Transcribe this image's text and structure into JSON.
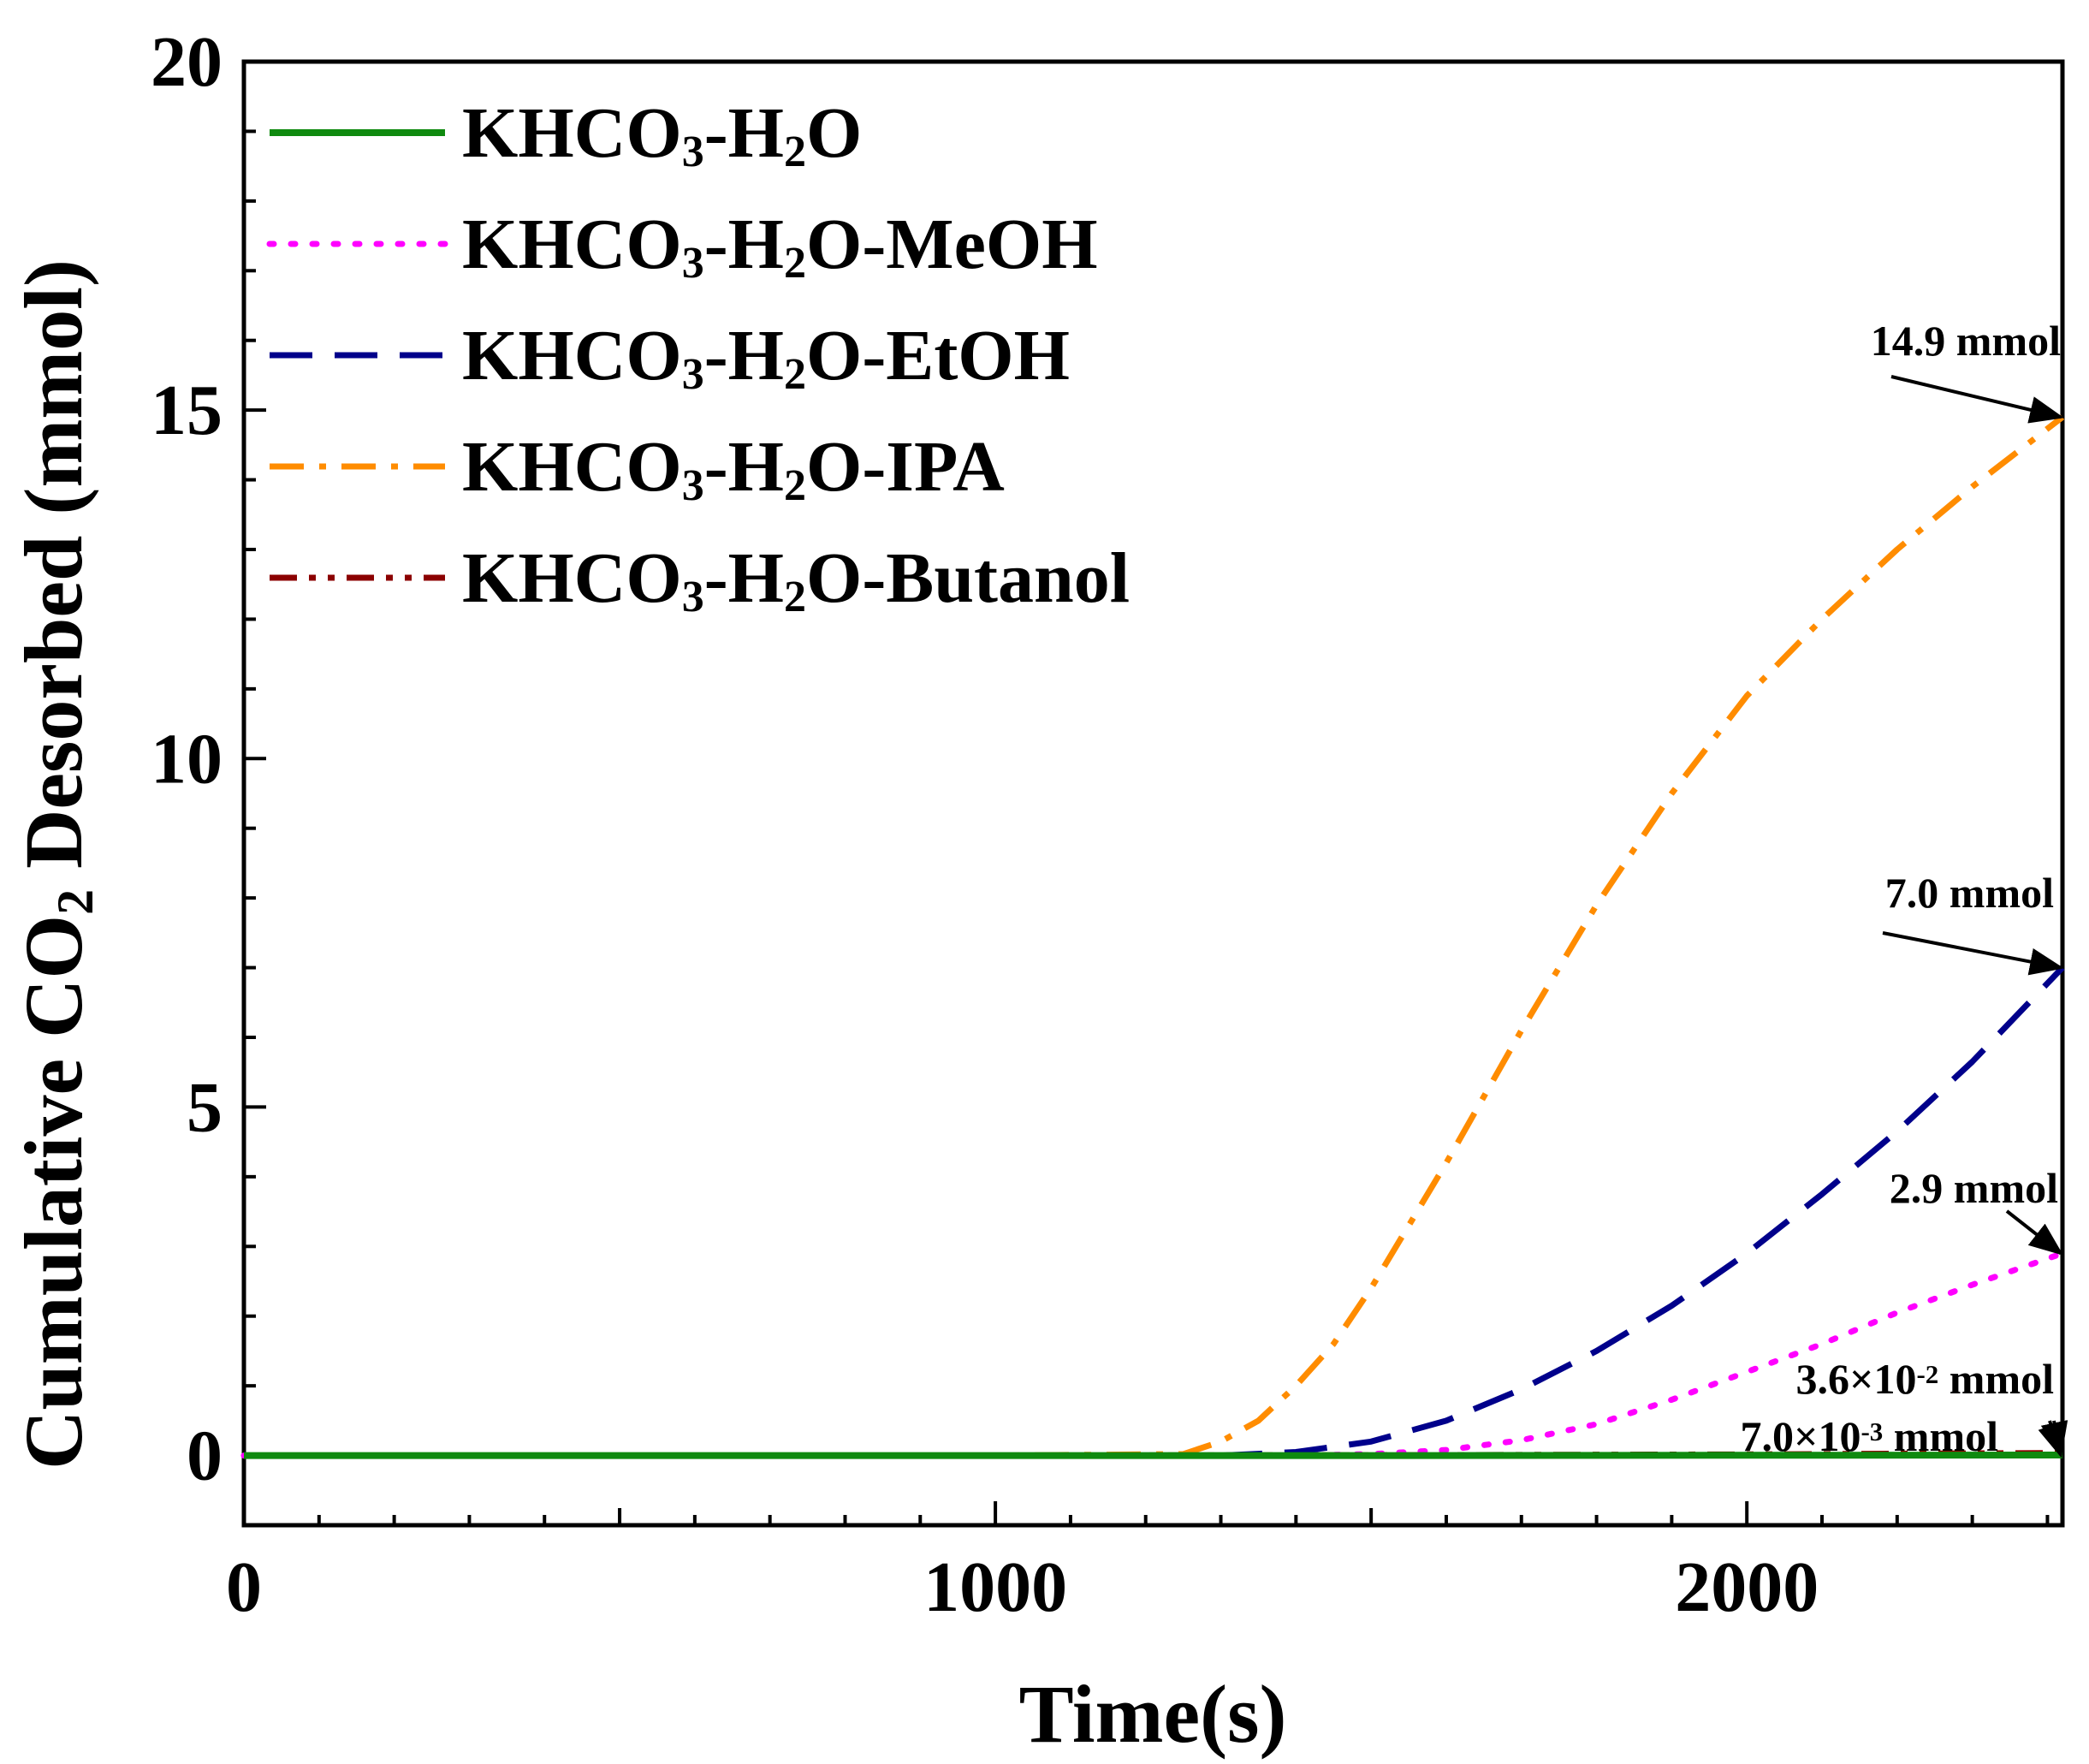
{
  "chart_data": {
    "type": "line",
    "xlabel": "Time(s)",
    "ylabel": "Cumulative CO2 Desorbed (mmol)",
    "ylabel_parts": {
      "pre": "Cumulative CO",
      "sub": "2",
      "post": " Desorbed (mmol)"
    },
    "xlim": [
      0,
      2420
    ],
    "ylim": [
      -1,
      20
    ],
    "x_ticks": [
      0,
      1000,
      2000
    ],
    "y_ticks": [
      0,
      5,
      10,
      15,
      20
    ],
    "grid": false,
    "legend_position": "top-left",
    "series": [
      {
        "name": "KHCO3-H2O",
        "label_parts": [
          {
            "t": "KHCO"
          },
          {
            "t": "3",
            "sub": true
          },
          {
            "t": "-H"
          },
          {
            "t": "2",
            "sub": true
          },
          {
            "t": "O"
          }
        ],
        "color": "#0f8a0f",
        "style": "solid",
        "x": [
          0,
          500,
          1000,
          1500,
          2000,
          2420
        ],
        "y": [
          0,
          0,
          0,
          0,
          0.003,
          0.007
        ]
      },
      {
        "name": "KHCO3-H2O-MeOH",
        "label_parts": [
          {
            "t": "KHCO"
          },
          {
            "t": "3",
            "sub": true
          },
          {
            "t": "-H"
          },
          {
            "t": "2",
            "sub": true
          },
          {
            "t": "O-MeOH"
          }
        ],
        "color": "#ff00ff",
        "style": "dotted",
        "x": [
          0,
          1000,
          1400,
          1500,
          1600,
          1700,
          1800,
          1900,
          2000,
          2100,
          2200,
          2300,
          2420
        ],
        "y": [
          0,
          0,
          0,
          0.02,
          0.08,
          0.22,
          0.45,
          0.8,
          1.2,
          1.6,
          2.05,
          2.45,
          2.9
        ]
      },
      {
        "name": "KHCO3-H2O-EtOH",
        "label_parts": [
          {
            "t": "KHCO"
          },
          {
            "t": "3",
            "sub": true
          },
          {
            "t": "-H"
          },
          {
            "t": "2",
            "sub": true
          },
          {
            "t": "O-EtOH"
          }
        ],
        "color": "#00008b",
        "style": "dashed",
        "x": [
          0,
          1000,
          1300,
          1400,
          1500,
          1600,
          1700,
          1800,
          1900,
          2000,
          2100,
          2200,
          2300,
          2420
        ],
        "y": [
          0,
          0,
          0,
          0.05,
          0.2,
          0.5,
          0.95,
          1.5,
          2.15,
          2.9,
          3.75,
          4.65,
          5.65,
          7.0
        ]
      },
      {
        "name": "KHCO3-H2O-IPA",
        "label_parts": [
          {
            "t": "KHCO"
          },
          {
            "t": "3",
            "sub": true
          },
          {
            "t": "-H"
          },
          {
            "t": "2",
            "sub": true
          },
          {
            "t": "O-IPA"
          }
        ],
        "color": "#ff8c00",
        "style": "dashdot",
        "x": [
          0,
          1000,
          1250,
          1300,
          1350,
          1400,
          1450,
          1500,
          1550,
          1600,
          1700,
          1800,
          1900,
          2000,
          2100,
          2200,
          2300,
          2420
        ],
        "y": [
          0,
          0,
          0.02,
          0.2,
          0.5,
          1.0,
          1.6,
          2.4,
          3.3,
          4.2,
          6.1,
          7.9,
          9.5,
          10.9,
          12.0,
          13.0,
          13.9,
          14.9
        ]
      },
      {
        "name": "KHCO3-H2O-Butanol",
        "label_parts": [
          {
            "t": "KHCO"
          },
          {
            "t": "3",
            "sub": true
          },
          {
            "t": "-H"
          },
          {
            "t": "2",
            "sub": true
          },
          {
            "t": "O-Butanol"
          }
        ],
        "color": "#8b0000",
        "style": "dashdotdot",
        "x": [
          0,
          500,
          1000,
          1500,
          2000,
          2420
        ],
        "y": [
          0,
          0,
          0,
          0.005,
          0.015,
          0.036
        ]
      }
    ],
    "annotations": [
      {
        "parts": [
          {
            "t": "14.9 mmol"
          }
        ],
        "target": [
          2420,
          14.9
        ]
      },
      {
        "parts": [
          {
            "t": "7.0 mmol"
          }
        ],
        "target": [
          2420,
          7.0
        ]
      },
      {
        "parts": [
          {
            "t": "2.9 mmol"
          }
        ],
        "target": [
          2420,
          2.9
        ]
      },
      {
        "parts": [
          {
            "t": "3.6×10"
          },
          {
            "t": "-2",
            "sup": true
          },
          {
            "t": " mmol"
          }
        ],
        "target": [
          2420,
          0.036
        ]
      },
      {
        "parts": [
          {
            "t": "7.0×10"
          },
          {
            "t": "-3",
            "sup": true
          },
          {
            "t": " mmol"
          }
        ],
        "target": [
          2420,
          0.007
        ]
      }
    ]
  }
}
